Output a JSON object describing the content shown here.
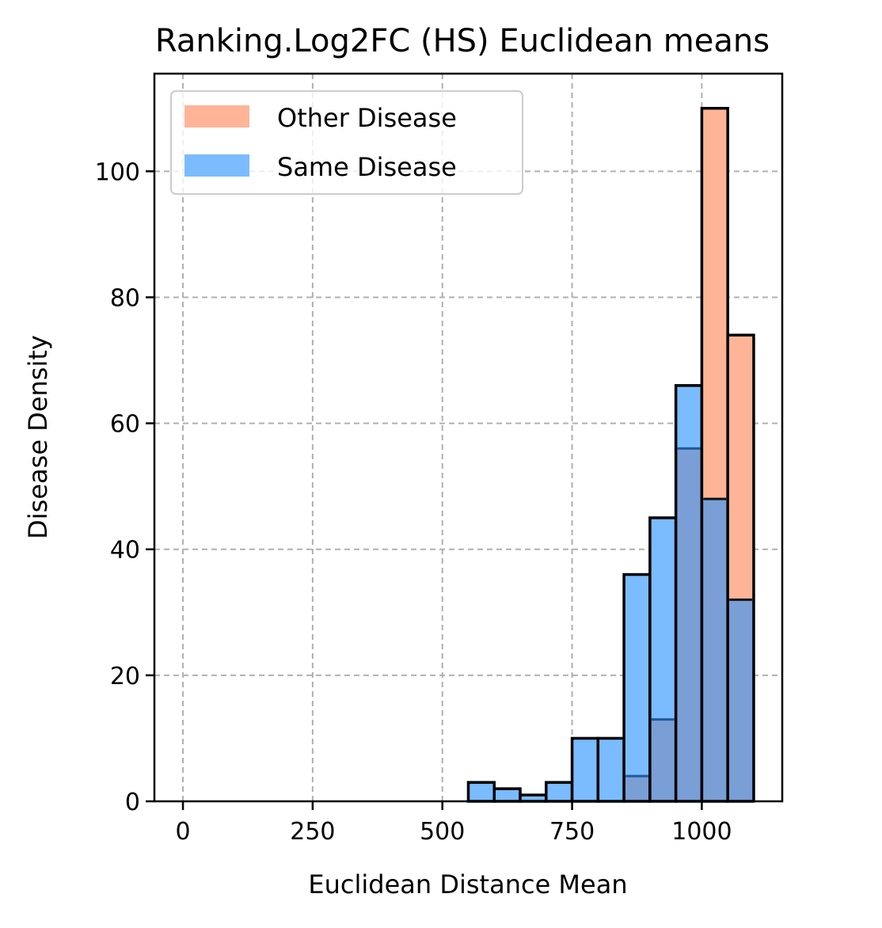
{
  "chart_data": {
    "type": "bar",
    "title": "Ranking.Log2FC (HS) Euclidean means",
    "xlabel": "Euclidean Distance Mean",
    "ylabel": "Disease Density",
    "xlim": [
      -55,
      1155
    ],
    "ylim": [
      0,
      115.5
    ],
    "xticks": [
      0,
      250,
      500,
      750,
      1000
    ],
    "yticks": [
      0,
      20,
      40,
      60,
      80,
      100
    ],
    "grid": true,
    "legend_position": "top-left",
    "bins": [
      [
        550,
        600
      ],
      [
        600,
        650
      ],
      [
        650,
        700
      ],
      [
        700,
        750
      ],
      [
        750,
        800
      ],
      [
        800,
        850
      ],
      [
        850,
        900
      ],
      [
        900,
        950
      ],
      [
        950,
        1000
      ],
      [
        1000,
        1050
      ],
      [
        1050,
        1100
      ]
    ],
    "series": [
      {
        "name": "Other Disease",
        "color": "#ffb497",
        "values": [
          0,
          0,
          0,
          0,
          0,
          0,
          4,
          13,
          56,
          110,
          74
        ]
      },
      {
        "name": "Same Disease",
        "color": "#7abcff",
        "values": [
          3,
          2,
          1,
          3,
          10,
          10,
          36,
          45,
          66,
          48,
          32
        ]
      }
    ],
    "overlap_color": "#7a9ed6"
  }
}
